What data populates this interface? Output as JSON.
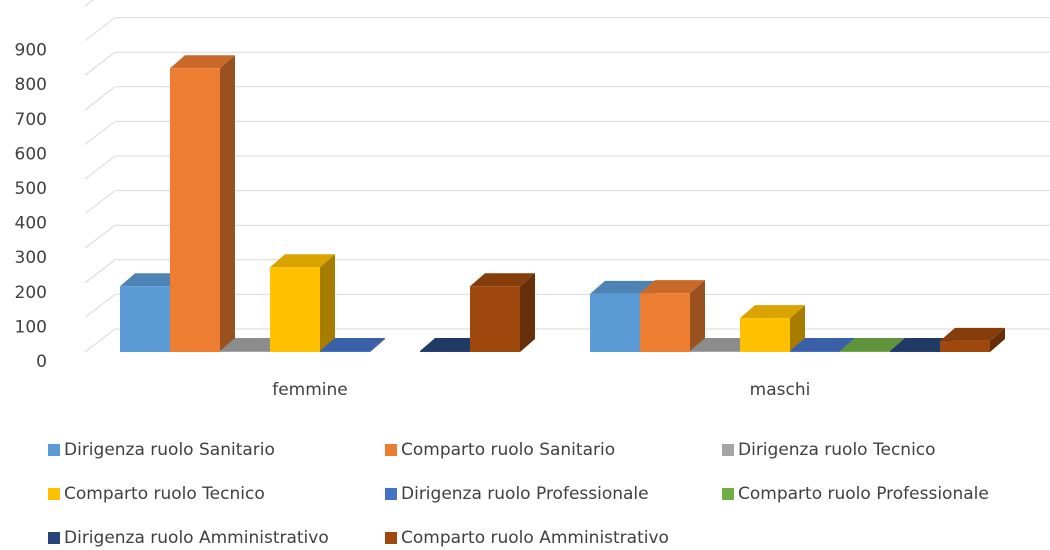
{
  "chart_data": {
    "type": "bar3d",
    "categories": [
      "femmine",
      "maschi"
    ],
    "series": [
      {
        "name": "Dirigenza ruolo Sanitario",
        "color": "#5b9bd5",
        "values": [
          190,
          168
        ]
      },
      {
        "name": "Comparto ruolo Sanitario",
        "color": "#ed7d31",
        "values": [
          820,
          170
        ]
      },
      {
        "name": "Dirigenza ruolo Tecnico",
        "color": "#a5a5a5",
        "values": [
          3,
          3
        ]
      },
      {
        "name": "Comparto ruolo Tecnico",
        "color": "#ffc000",
        "values": [
          245,
          98
        ]
      },
      {
        "name": "Dirigenza ruolo Professionale",
        "color": "#4472c4",
        "values": [
          3,
          3
        ]
      },
      {
        "name": "Comparto ruolo Professionale",
        "color": "#70ad47",
        "values": [
          null,
          3
        ]
      },
      {
        "name": "Dirigenza ruolo Amministrativo",
        "color": "#264478",
        "values": [
          3,
          3
        ]
      },
      {
        "name": "Comparto ruolo Amministrativo",
        "color": "#9e480e",
        "values": [
          190,
          32
        ]
      }
    ],
    "ylim": [
      0,
      1000
    ],
    "yticks": [
      0,
      100,
      200,
      300,
      400,
      500,
      600,
      700,
      800,
      900
    ],
    "grid": true,
    "legend": "bottom"
  }
}
